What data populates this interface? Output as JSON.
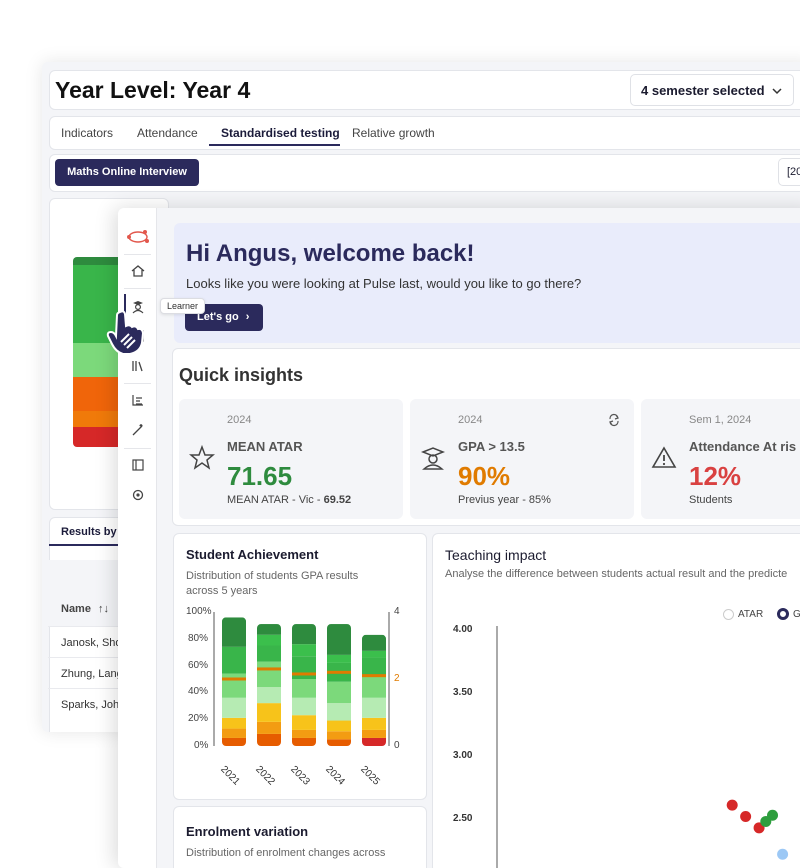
{
  "back_window": {
    "title": "Year Level: Year 4",
    "semester_select": "4 semester selected",
    "tabs": [
      "Indicators",
      "Attendance",
      "Standardised testing",
      "Relative growth"
    ],
    "active_tab": "Standardised testing",
    "maths_button": "Maths Online Interview",
    "year_select": "[20",
    "results_tab": "Results by s",
    "name_header": "Name",
    "names": [
      "Janosk, Sho",
      "Zhung, Lang",
      "Sparks, Joh"
    ]
  },
  "sidebar": {
    "tooltip": "Learner",
    "icons": [
      "logo-icon",
      "home-icon",
      "learner-icon",
      "book-icon",
      "library-icon",
      "chart-icon",
      "wand-icon",
      "layout-icon",
      "settings-icon"
    ]
  },
  "welcome": {
    "title": "Hi Angus, welcome back!",
    "subtitle": "Looks like you were looking at Pulse last, would you like to go there?",
    "button": "Let's go"
  },
  "quick_insights": {
    "title": "Quick insights",
    "cards": [
      {
        "year": "2024",
        "label": "MEAN ATAR",
        "value": "71.65",
        "value_color": "#2e8b3e",
        "foot_prefix": "MEAN ATAR - Vic - ",
        "foot_bold": "69.52",
        "icon": "star-icon"
      },
      {
        "year": "2024",
        "label": "GPA > 13.5",
        "value": "90%",
        "value_color": "#e07b00",
        "foot_prefix": "Previus year - 85%",
        "foot_bold": "",
        "icon": "graduate-icon"
      },
      {
        "year": "Sem 1, 2024",
        "label": "Attendance At ris",
        "value": "12%",
        "value_color": "#d94141",
        "foot_prefix": "Students",
        "foot_bold": "",
        "icon": "warning-icon"
      }
    ]
  },
  "student_achievement": {
    "title": "Student Achievement",
    "subtitle": "Distribution of students GPA results across 5 years"
  },
  "teaching_impact": {
    "title": "Teaching impact",
    "subtitle": "Analyse the difference between students actual result and the predicte",
    "legend": [
      "ATAR",
      "G"
    ]
  },
  "enrolment": {
    "title": "Enrolment variation",
    "subtitle": "Distribution of enrolment changes across"
  },
  "chart_data": [
    {
      "type": "bar",
      "stacked": true,
      "title": "Student Achievement",
      "categories": [
        "2021",
        "2022",
        "2023",
        "2024",
        "2025"
      ],
      "y_ticks": [
        "100%",
        "80%",
        "60%",
        "40%",
        "20%",
        "0%"
      ],
      "y2_ticks": [
        "4",
        "2",
        "0"
      ],
      "ylim": [
        0,
        100
      ],
      "y2lim": [
        0,
        4
      ],
      "series": [
        {
          "color": "#e65c00",
          "values": [
            6,
            9,
            6,
            5,
            0
          ]
        },
        {
          "color": "#d62828",
          "values": [
            0,
            0,
            0,
            0,
            6
          ]
        },
        {
          "color": "#f39c12",
          "values": [
            7,
            9,
            6,
            6,
            6
          ]
        },
        {
          "color": "#f7c31a",
          "values": [
            8,
            14,
            11,
            8,
            9
          ]
        },
        {
          "color": "#b6ebb3",
          "values": [
            15,
            12,
            13,
            13,
            15
          ]
        },
        {
          "color": "#7cd97b",
          "values": [
            18,
            19,
            14,
            16,
            16
          ]
        },
        {
          "color": "#39b54a",
          "values": [
            20,
            12,
            17,
            14,
            14
          ]
        },
        {
          "color": "#3bbf4c",
          "values": [
            0,
            8,
            9,
            6,
            5
          ]
        },
        {
          "color": "#2e8b3e",
          "values": [
            22,
            8,
            15,
            23,
            12
          ]
        }
      ],
      "line": {
        "color": "#e07b00",
        "values": [
          2.0,
          2.3,
          2.15,
          2.2,
          2.1
        ]
      }
    },
    {
      "type": "scatter",
      "title": "Teaching impact",
      "y_ticks": [
        "4.00",
        "3.50",
        "3.00",
        "2.50"
      ],
      "ylim": [
        2.2,
        4.0
      ],
      "points": [
        {
          "x": 0.7,
          "y": 2.61,
          "color": "#d62828"
        },
        {
          "x": 0.74,
          "y": 2.52,
          "color": "#d62828"
        },
        {
          "x": 0.78,
          "y": 2.43,
          "color": "#d62828"
        },
        {
          "x": 0.82,
          "y": 2.53,
          "color": "#2e9e3e"
        },
        {
          "x": 0.8,
          "y": 2.48,
          "color": "#2e9e3e"
        },
        {
          "x": 0.92,
          "y": 2.61,
          "color": "#2e9e3e"
        },
        {
          "x": 0.93,
          "y": 2.47,
          "color": "#9cc8f5"
        },
        {
          "x": 0.95,
          "y": 2.43,
          "color": "#9cc8f5"
        },
        {
          "x": 0.85,
          "y": 2.22,
          "color": "#9cc8f5"
        }
      ]
    }
  ]
}
